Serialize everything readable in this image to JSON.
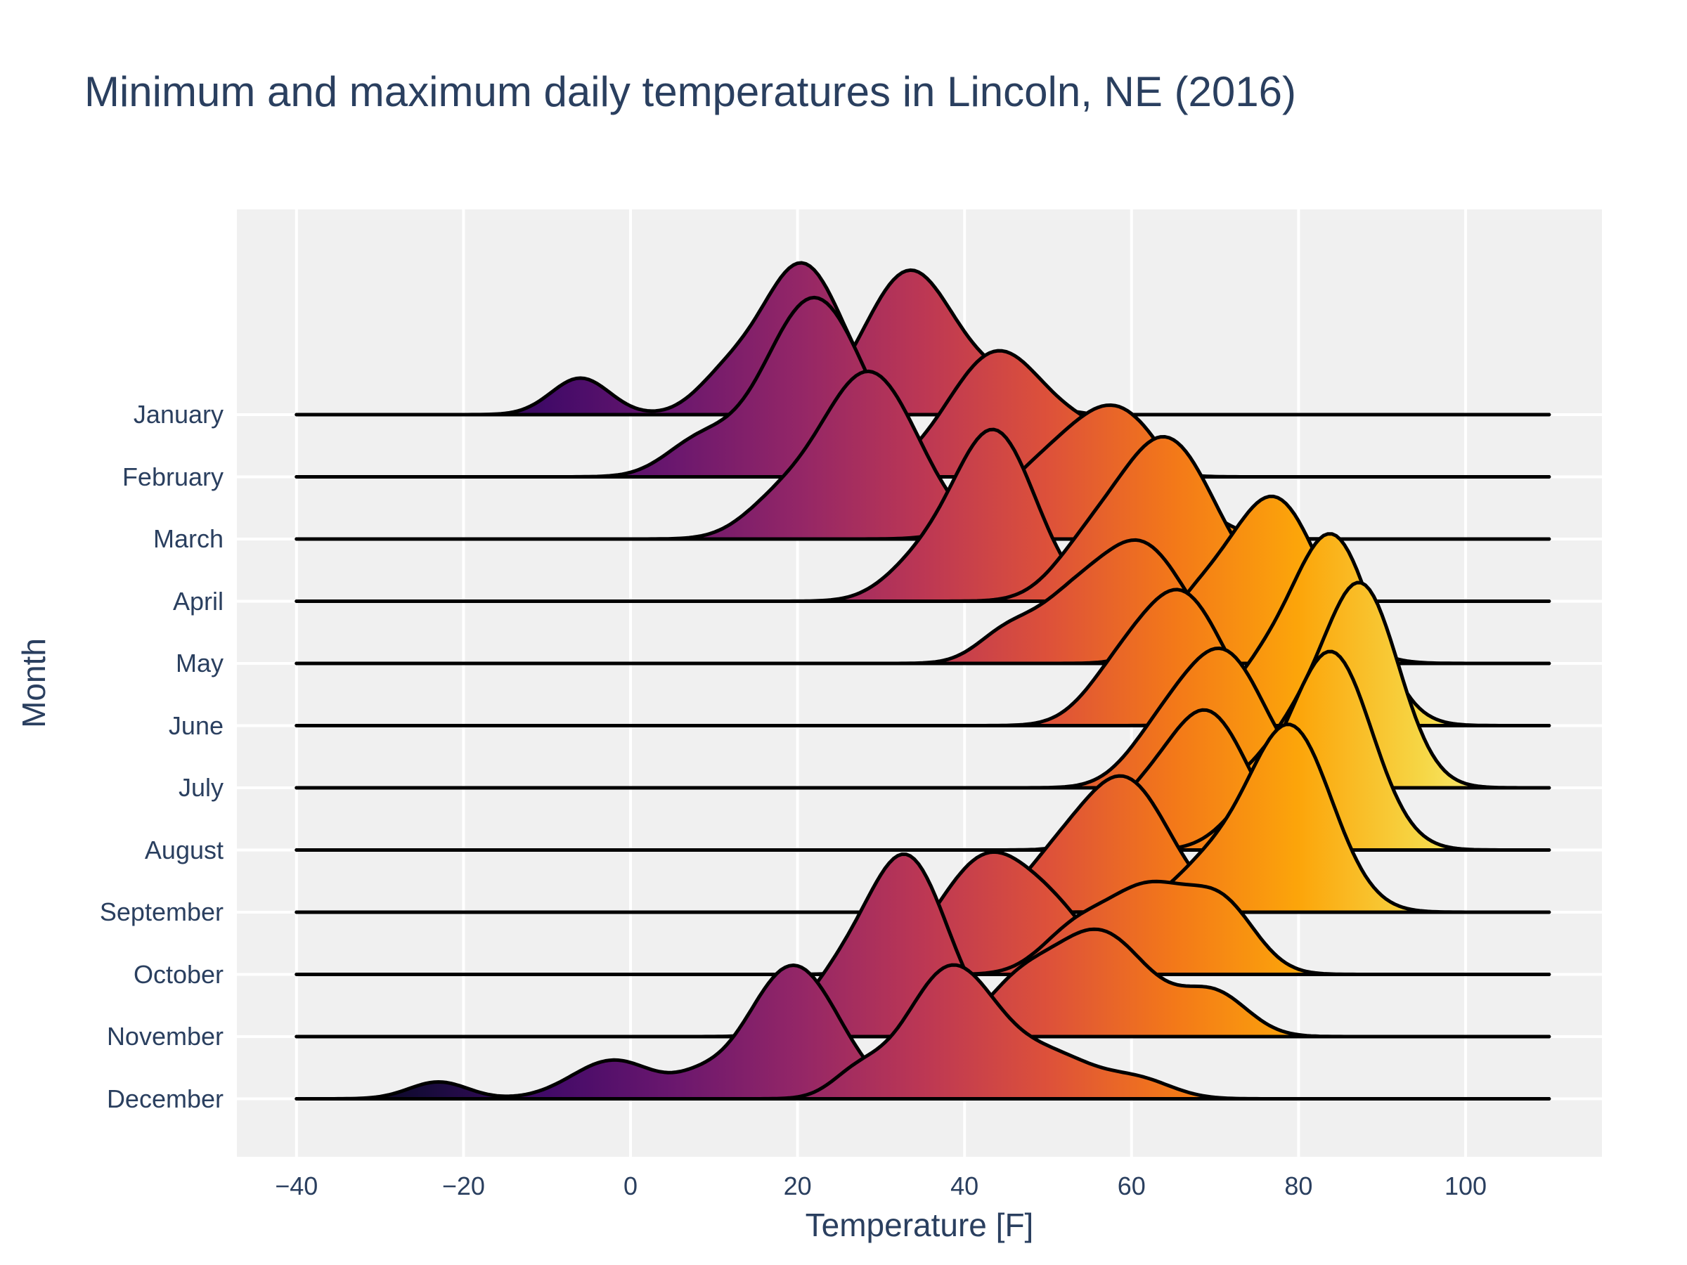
{
  "title": {
    "text": "Minimum and maximum daily temperatures in Lincoln, NE (2016)"
  },
  "x_axis": {
    "title": "Temperature [F]",
    "tick_labels": [
      "−40",
      "−20",
      "0",
      "20",
      "40",
      "60",
      "80",
      "100"
    ],
    "tick_values": [
      -40,
      -20,
      0,
      20,
      40,
      60,
      80,
      100
    ]
  },
  "y_axis": {
    "title": "Month",
    "categories": [
      "January",
      "February",
      "March",
      "April",
      "May",
      "June",
      "July",
      "August",
      "September",
      "October",
      "November",
      "December"
    ]
  },
  "colors": {
    "paper_background": "#ffffff",
    "plot_background": "#f0f0f0",
    "gridline": "#ffffff",
    "curve_outline": "#000000",
    "text": "#2a3f5f"
  },
  "chart_data": {
    "type": "area",
    "variant": "ridgeline-joyplot",
    "title": "Minimum and maximum daily temperatures in Lincoln, NE (2016)",
    "xlabel": "Temperature [F]",
    "ylabel": "Month",
    "x_axis_range_shown": [
      -47,
      116
    ],
    "trace_x_domain": [
      -40,
      110
    ],
    "grid": "white on light-gray, vertical lines at x ticks, horizontal line at each month baseline",
    "legend": "none",
    "fill": "horizontal inferno colorscale gradient mapped to temperature across all traces, opaque, black outlines",
    "colorscale": {
      "name": "inferno",
      "stops": [
        [
          0.0,
          "#000004"
        ],
        [
          0.1,
          "#160b39"
        ],
        [
          0.2,
          "#420a68"
        ],
        [
          0.3,
          "#6a176e"
        ],
        [
          0.4,
          "#932667"
        ],
        [
          0.5,
          "#bc3754"
        ],
        [
          0.6,
          "#dd513a"
        ],
        [
          0.7,
          "#f37819"
        ],
        [
          0.8,
          "#fca50a"
        ],
        [
          0.9,
          "#f6d746"
        ],
        [
          1.0,
          "#fcffa4"
        ]
      ]
    },
    "kde_component_format": "[mean_temp_F, std_F, peak_height_px]; each month has a minimum-temperature density curve and a maximum-temperature density curve drawn on its baseline; density(t) = sum(h*exp(-0.5*((t-mean)/std)^2))",
    "draw_order": "January first to December last (lower rows painted on top); within a month min curve then max curve",
    "months": [
      {
        "name": "January",
        "min_kde": [
          [
            -6,
            3.5,
            52
          ],
          [
            11,
            3.5,
            40
          ],
          [
            20.5,
            5,
            215
          ]
        ],
        "max_kde": [
          [
            33.5,
            5.5,
            205
          ],
          [
            45,
            4,
            35
          ]
        ]
      },
      {
        "name": "February",
        "min_kde": [
          [
            22,
            6,
            255
          ],
          [
            8,
            4,
            45
          ]
        ],
        "max_kde": [
          [
            44,
            6,
            178
          ],
          [
            56,
            4.5,
            48
          ]
        ]
      },
      {
        "name": "March",
        "min_kde": [
          [
            28.5,
            6,
            238
          ],
          [
            17,
            4,
            35
          ]
        ],
        "max_kde": [
          [
            58,
            6.5,
            185
          ],
          [
            47,
            5,
            55
          ]
        ]
      },
      {
        "name": "April",
        "min_kde": [
          [
            43.5,
            5,
            242
          ],
          [
            34,
            4,
            40
          ]
        ],
        "max_kde": [
          [
            64,
            6,
            232
          ],
          [
            54,
            4,
            45
          ]
        ]
      },
      {
        "name": "May",
        "min_kde": [
          [
            61,
            5.5,
            170
          ],
          [
            52,
            4,
            60
          ],
          [
            45,
            3.5,
            42
          ]
        ],
        "max_kde": [
          [
            77,
            5.5,
            235
          ],
          [
            67,
            4,
            60
          ]
        ]
      },
      {
        "name": "June",
        "min_kde": [
          [
            66,
            5,
            185
          ],
          [
            58,
            4,
            55
          ]
        ],
        "max_kde": [
          [
            84,
            4.8,
            268
          ],
          [
            75,
            4,
            60
          ]
        ]
      },
      {
        "name": "July",
        "min_kde": [
          [
            71,
            5,
            190
          ],
          [
            63,
            4,
            55
          ]
        ],
        "max_kde": [
          [
            87.5,
            4.5,
            285
          ],
          [
            79,
            4,
            65
          ]
        ]
      },
      {
        "name": "August",
        "min_kde": [
          [
            69,
            5,
            195
          ],
          [
            60,
            4,
            50
          ]
        ],
        "max_kde": [
          [
            84,
            4.8,
            278
          ],
          [
            75,
            4,
            55
          ]
        ]
      },
      {
        "name": "September",
        "min_kde": [
          [
            59,
            5.5,
            190
          ],
          [
            50,
            4,
            45
          ]
        ],
        "max_kde": [
          [
            79,
            5,
            262
          ],
          [
            69,
            4.5,
            60
          ]
        ]
      },
      {
        "name": "October",
        "min_kde": [
          [
            43,
            6,
            170
          ],
          [
            52,
            4,
            45
          ]
        ],
        "max_kde": [
          [
            62,
            5,
            120
          ],
          [
            71,
            4,
            90
          ],
          [
            53,
            4,
            55
          ]
        ]
      },
      {
        "name": "November",
        "min_kde": [
          [
            33,
            5,
            255
          ],
          [
            24,
            4,
            55
          ]
        ],
        "max_kde": [
          [
            56,
            6,
            150
          ],
          [
            70,
            4,
            58
          ],
          [
            46,
            4,
            55
          ]
        ]
      },
      {
        "name": "December",
        "min_kde": [
          [
            19.5,
            5.5,
            190
          ],
          [
            -2,
            5,
            55
          ],
          [
            -23,
            3.5,
            24
          ],
          [
            8,
            3,
            18
          ]
        ],
        "max_kde": [
          [
            38.5,
            5.5,
            188
          ],
          [
            51,
            5,
            55
          ],
          [
            61,
            4,
            25
          ],
          [
            27,
            3,
            30
          ]
        ]
      }
    ]
  }
}
